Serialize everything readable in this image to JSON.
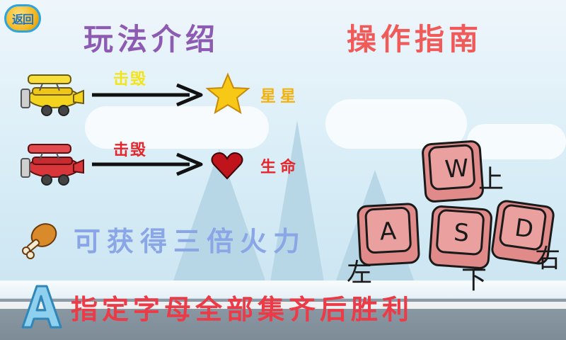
{
  "back_button": {
    "label": "返回"
  },
  "headings": {
    "gameplay": "玩法介绍",
    "controls": "操作指南"
  },
  "rows": [
    {
      "action": "击毁",
      "reward": "星星",
      "action_color": "#f4e41a",
      "reward_color": "#f2b20f"
    },
    {
      "action": "击毁",
      "reward": "生命",
      "action_color": "#e8242b",
      "reward_color": "#e8242b"
    }
  ],
  "powerup": {
    "text": "可获得三倍火力",
    "icon": "drumstick-icon"
  },
  "goal": {
    "text": "指定字母全部集齐后胜利",
    "icon": "letter-a-icon"
  },
  "keys": {
    "up": {
      "key": "W",
      "label": "上"
    },
    "left": {
      "key": "A",
      "label": "左"
    },
    "down": {
      "key": "S",
      "label": "下"
    },
    "right": {
      "key": "D",
      "label": "右"
    }
  }
}
